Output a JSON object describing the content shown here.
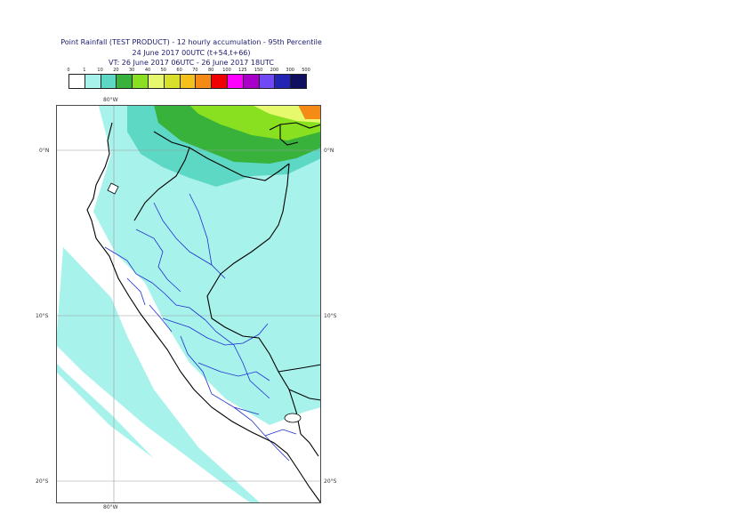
{
  "title": {
    "line1": "Point Rainfall (TEST PRODUCT) - 12 hourly accumulation - 95th Percentile",
    "line2": "24 June 2017 00UTC (t+54,t+66)",
    "line3": "VT: 26 June 2017 06UTC - 26 June 2017 18UTC"
  },
  "legend": {
    "ticks": [
      "0",
      "1",
      "10",
      "20",
      "30",
      "40",
      "50",
      "60",
      "70",
      "80",
      "100",
      "125",
      "150",
      "200",
      "300",
      "500"
    ],
    "colors": [
      "#ffffff",
      "#a8f2ec",
      "#5cd8c4",
      "#38b23a",
      "#88e020",
      "#e6f86c",
      "#d8e02c",
      "#f4c01c",
      "#f58a14",
      "#f00000",
      "#ff00ff",
      "#a800c8",
      "#7048f4",
      "#2424b4",
      "#101060"
    ]
  },
  "axes": {
    "top_lon": "80°W",
    "bottom_lon": "80°W",
    "lat_0": "0°N",
    "lat_10": "10°S",
    "lat_20": "20°S"
  }
}
